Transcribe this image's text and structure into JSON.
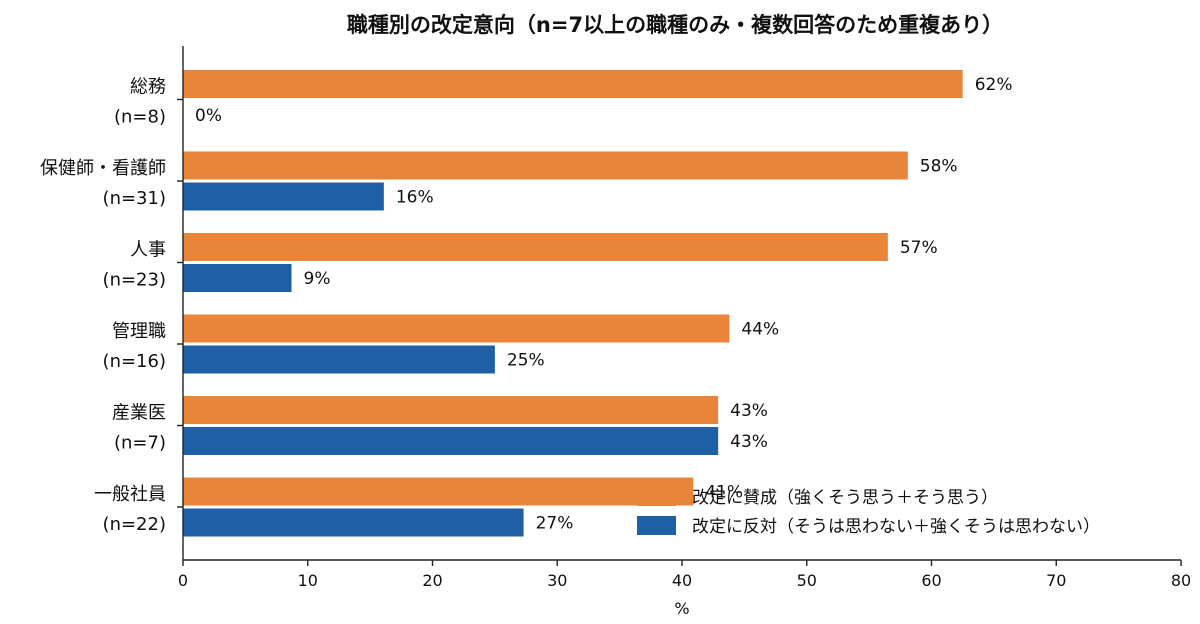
{
  "chart_data": {
    "type": "bar",
    "orientation": "horizontal",
    "title": "職種別の改定意向（n=7以上の職種のみ・複数回答のため重複あり）",
    "xlabel": "%",
    "ylabel": "",
    "xlim": [
      0,
      80
    ],
    "xticks": [
      "0",
      "10",
      "20",
      "30",
      "40",
      "50",
      "60",
      "70",
      "80"
    ],
    "categories": [
      [
        "総務",
        "(n=8)"
      ],
      [
        "保健師・看護師",
        "(n=31)"
      ],
      [
        "人事",
        "(n=23)"
      ],
      [
        "管理職",
        "(n=16)"
      ],
      [
        "産業医",
        "(n=7)"
      ],
      [
        "一般社員",
        "(n=22)"
      ]
    ],
    "series": [
      {
        "name": "改定に賛成（強くそう思う＋そう思う）",
        "color": "#E8853A",
        "values": [
          62.5,
          58.1,
          56.5,
          43.8,
          42.9,
          40.9
        ],
        "labels": [
          "62%",
          "58%",
          "57%",
          "44%",
          "43%",
          "41%"
        ]
      },
      {
        "name": "改定に反対（そうは思わない＋強くそうは思わない）",
        "color": "#1F5FA6",
        "values": [
          0,
          16.1,
          8.7,
          25.0,
          42.9,
          27.3
        ],
        "labels": [
          "0%",
          "16%",
          "9%",
          "25%",
          "43%",
          "27%"
        ]
      }
    ],
    "grid": false,
    "legend_position": "bottom-right"
  }
}
